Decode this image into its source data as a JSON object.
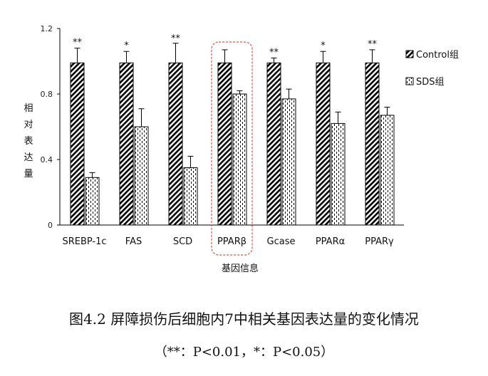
{
  "chart_data": {
    "type": "bar",
    "categories": [
      "SREBP-1c",
      "FAS",
      "SCD",
      "PPARβ",
      "Gcase",
      "PPARα",
      "PPARγ"
    ],
    "series": [
      {
        "name": "Control组",
        "values": [
          0.99,
          0.99,
          0.99,
          0.99,
          0.99,
          0.99,
          0.99
        ],
        "errors": [
          0.09,
          0.07,
          0.12,
          0.08,
          0.03,
          0.07,
          0.08
        ]
      },
      {
        "name": "SDS组",
        "values": [
          0.29,
          0.6,
          0.35,
          0.8,
          0.77,
          0.62,
          0.67
        ],
        "errors": [
          0.03,
          0.11,
          0.07,
          0.02,
          0.06,
          0.07,
          0.05
        ]
      }
    ],
    "significance": [
      "**",
      "*",
      "**",
      "",
      "**",
      "*",
      "**"
    ],
    "highlighted_category": "PPARβ",
    "ylabel": "相对表达量",
    "xlabel": "基因信息",
    "ylim": [
      0,
      1.2
    ],
    "yticks": [
      "0",
      "0.4",
      "0.8",
      "1.2"
    ],
    "legend_position": "right",
    "grid": false
  },
  "caption": {
    "title": "图4.2  屏障损伤后细胞内7中相关基因表达量的变化情况",
    "note": "（**：P<0.01，*：P<0.05）"
  },
  "colors": {
    "axis": "#000000",
    "highlight_box": "#d9534f",
    "bar_outline": "#000000"
  }
}
